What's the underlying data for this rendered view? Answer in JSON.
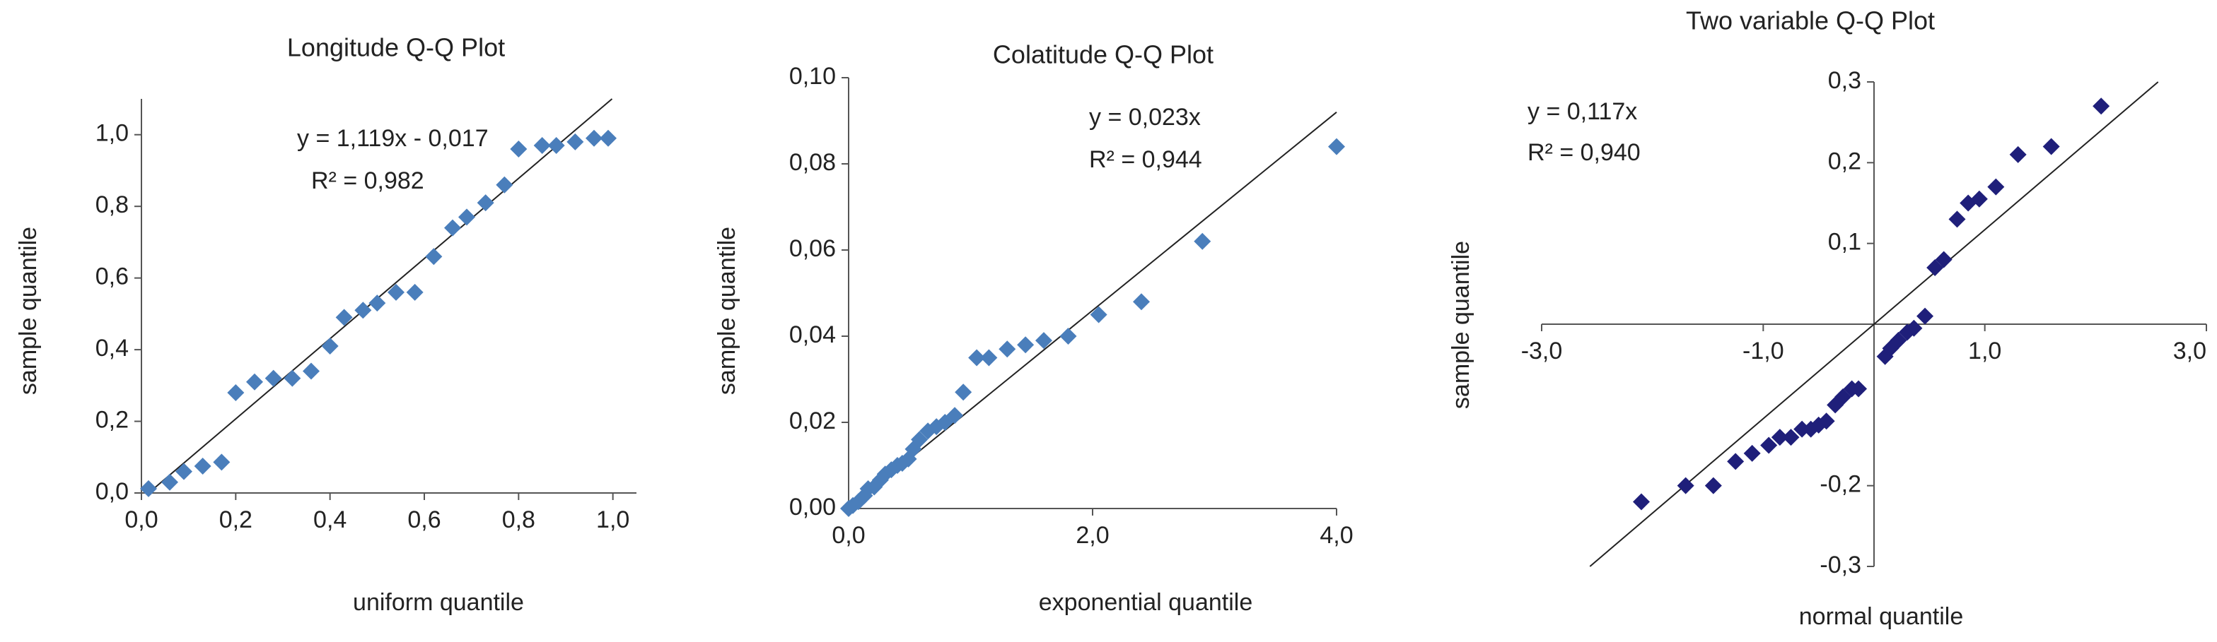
{
  "chart_data": [
    {
      "type": "scatter",
      "title": "Longitude Q-Q Plot",
      "xlabel": "uniform quantile",
      "ylabel": "sample quantile",
      "trendline": {
        "label": "y = 1,119x - 0,017",
        "slope": 1.119,
        "intercept": -0.017
      },
      "r2_label": "R² = 0,982",
      "color": "#4a7ebb",
      "x": [
        0.015,
        0.06,
        0.09,
        0.13,
        0.17,
        0.2,
        0.24,
        0.28,
        0.32,
        0.36,
        0.4,
        0.43,
        0.47,
        0.5,
        0.54,
        0.58,
        0.62,
        0.66,
        0.69,
        0.73,
        0.77,
        0.8,
        0.85,
        0.88,
        0.92,
        0.96,
        0.99
      ],
      "values": [
        0.012,
        0.03,
        0.06,
        0.075,
        0.086,
        0.28,
        0.31,
        0.32,
        0.32,
        0.34,
        0.41,
        0.49,
        0.51,
        0.53,
        0.56,
        0.56,
        0.66,
        0.74,
        0.77,
        0.81,
        0.86,
        0.96,
        0.97,
        0.97,
        0.98,
        0.99,
        0.99
      ],
      "xlim": [
        0,
        1.05
      ],
      "ylim": [
        0,
        1.1
      ],
      "xticks": [
        {
          "value": 0,
          "label": "0,0"
        },
        {
          "value": 0.2,
          "label": "0,2"
        },
        {
          "value": 0.4,
          "label": "0,4"
        },
        {
          "value": 0.6,
          "label": "0,6"
        },
        {
          "value": 0.8,
          "label": "0,8"
        },
        {
          "value": 1.0,
          "label": "1,0"
        }
      ],
      "yticks": [
        {
          "value": 0,
          "label": "0,0"
        },
        {
          "value": 0.2,
          "label": "0,2"
        },
        {
          "value": 0.4,
          "label": "0,4"
        },
        {
          "value": 0.6,
          "label": "0,6"
        },
        {
          "value": 0.8,
          "label": "0,8"
        },
        {
          "value": 1.0,
          "label": "1,0"
        }
      ],
      "axis_position": "edge"
    },
    {
      "type": "scatter",
      "title": "Colatitude Q-Q Plot",
      "xlabel": "exponential quantile",
      "ylabel": "sample quantile",
      "trendline": {
        "label": "y = 0,023x",
        "slope": 0.023,
        "intercept": 0
      },
      "r2_label": "R² = 0,944",
      "color": "#4a7ebb",
      "x": [
        0,
        0.035,
        0.08,
        0.13,
        0.16,
        0.21,
        0.26,
        0.3,
        0.35,
        0.4,
        0.44,
        0.49,
        0.53,
        0.58,
        0.65,
        0.72,
        0.79,
        0.87,
        0.94,
        1.05,
        1.15,
        1.3,
        1.45,
        1.6,
        1.8,
        2.05,
        2.4,
        2.9,
        4.0
      ],
      "values": [
        0,
        0.0007,
        0.0016,
        0.003,
        0.0046,
        0.005,
        0.0066,
        0.008,
        0.009,
        0.01,
        0.0105,
        0.0115,
        0.0138,
        0.016,
        0.018,
        0.019,
        0.02,
        0.0216,
        0.027,
        0.035,
        0.035,
        0.037,
        0.038,
        0.039,
        0.04,
        0.045,
        0.048,
        0.062,
        0.084
      ],
      "xlim": [
        0,
        4.0
      ],
      "ylim": [
        0,
        0.1
      ],
      "xticks": [
        {
          "value": 0,
          "label": "0,0"
        },
        {
          "value": 2,
          "label": "2,0"
        },
        {
          "value": 4,
          "label": "4,0"
        }
      ],
      "yticks": [
        {
          "value": 0,
          "label": "0,00"
        },
        {
          "value": 0.02,
          "label": "0,02"
        },
        {
          "value": 0.04,
          "label": "0,04"
        },
        {
          "value": 0.06,
          "label": "0,06"
        },
        {
          "value": 0.08,
          "label": "0,08"
        },
        {
          "value": 0.1,
          "label": "0,10"
        }
      ],
      "axis_position": "edge"
    },
    {
      "type": "scatter",
      "title": "Two variable Q-Q Plot",
      "xlabel": "normal quantile",
      "ylabel": "sample quantile",
      "trendline": {
        "label": "y = 0,117x",
        "slope": 0.117,
        "intercept": 0
      },
      "r2_label": "R² = 0,940",
      "color": "#1f1f7a",
      "x": [
        -2.1,
        -1.7,
        -1.45,
        -1.25,
        -1.1,
        -0.95,
        -0.85,
        -0.75,
        -0.65,
        -0.57,
        -0.5,
        -0.43,
        -0.35,
        -0.28,
        -0.2,
        -0.14,
        0.1,
        0.15,
        0.22,
        0.3,
        0.36,
        0.46,
        0.55,
        0.63,
        0.75,
        0.85,
        0.95,
        1.1,
        1.3,
        1.6,
        2.05
      ],
      "values": [
        -0.22,
        -0.2,
        -0.2,
        -0.17,
        -0.16,
        -0.15,
        -0.14,
        -0.14,
        -0.13,
        -0.13,
        -0.125,
        -0.12,
        -0.1,
        -0.09,
        -0.08,
        -0.08,
        -0.04,
        -0.03,
        -0.02,
        -0.01,
        -0.005,
        0.01,
        0.07,
        0.08,
        0.13,
        0.15,
        0.155,
        0.17,
        0.21,
        0.22,
        0.27
      ],
      "xlim": [
        -3,
        3
      ],
      "ylim": [
        -0.3,
        0.3
      ],
      "xticks": [
        {
          "value": -3,
          "label": "-3,0"
        },
        {
          "value": -1,
          "label": "-1,0"
        },
        {
          "value": 1,
          "label": "1,0"
        },
        {
          "value": 3,
          "label": "3,0"
        }
      ],
      "yticks": [
        {
          "value": 0.3,
          "label": "0,3"
        },
        {
          "value": 0.2,
          "label": "0,2"
        },
        {
          "value": 0.1,
          "label": "0,1"
        },
        {
          "value": -0.2,
          "label": "-0,2"
        },
        {
          "value": -0.3,
          "label": "-0,3"
        }
      ],
      "axis_position": "zero"
    }
  ]
}
